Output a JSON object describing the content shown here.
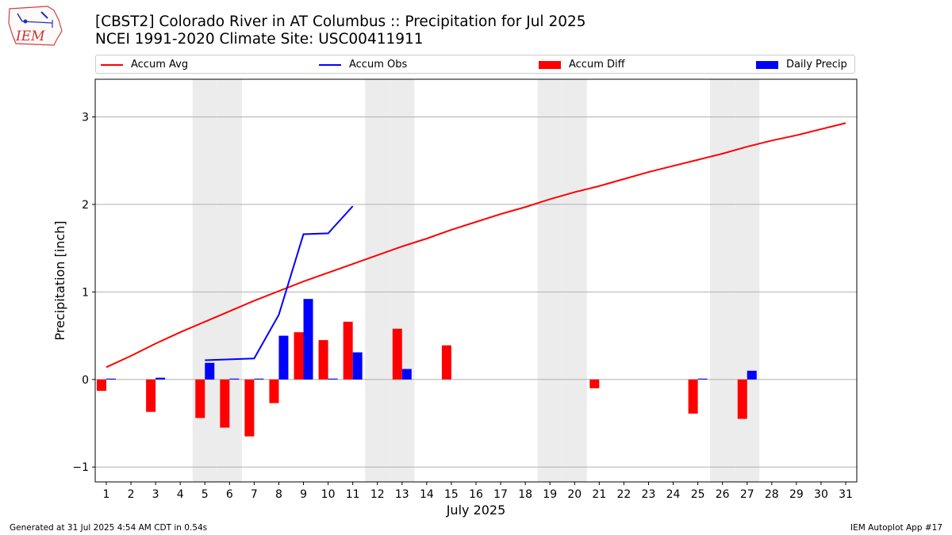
{
  "header": {
    "logo_text": "IEM",
    "title_line1": "[CBST2] Colorado River in AT Columbus :: Precipitation for Jul 2025",
    "title_line2": "NCEI 1991-2020 Climate Site: USC00411911"
  },
  "footer": {
    "generated": "Generated at 31 Jul 2025 4:54 AM CDT in 0.54s",
    "app": "IEM Autoplot App #17"
  },
  "colors": {
    "avg": "#ff0000",
    "obs": "#0000ff",
    "diff": "#ff0000",
    "daily": "#0000ff",
    "weekend": "#ececec",
    "grid": "#b0b0b0"
  },
  "chart_data": {
    "type": "bar",
    "title": "[CBST2] Colorado River in AT Columbus :: Precipitation for Jul 2025",
    "subtitle": "NCEI 1991-2020 Climate Site: USC00411911",
    "xlabel": "July 2025",
    "ylabel": "Precipitation [inch]",
    "ylim": [
      -1.17,
      3.43
    ],
    "yticks": [
      -1,
      0,
      1,
      2,
      3
    ],
    "grid": "horizontal",
    "legend_position": "top",
    "days": [
      1,
      2,
      3,
      4,
      5,
      6,
      7,
      8,
      9,
      10,
      11,
      12,
      13,
      14,
      15,
      16,
      17,
      18,
      19,
      20,
      21,
      22,
      23,
      24,
      25,
      26,
      27,
      28,
      29,
      30,
      31
    ],
    "weekend_days": [
      5,
      6,
      12,
      13,
      19,
      20,
      26,
      27
    ],
    "series": [
      {
        "name": "Accum Avg",
        "kind": "line",
        "values": [
          0.14,
          0.27,
          0.41,
          0.54,
          0.66,
          0.78,
          0.9,
          1.01,
          1.12,
          1.22,
          1.32,
          1.42,
          1.52,
          1.61,
          1.71,
          1.8,
          1.89,
          1.97,
          2.06,
          2.14,
          2.21,
          2.29,
          2.37,
          2.44,
          2.51,
          2.58,
          2.66,
          2.73,
          2.79,
          2.86,
          2.93
        ]
      },
      {
        "name": "Accum Obs",
        "kind": "line",
        "values": [
          null,
          null,
          null,
          null,
          0.22,
          0.23,
          0.24,
          0.74,
          1.66,
          1.67,
          1.98,
          null,
          null,
          null,
          null,
          null,
          null,
          null,
          null,
          null,
          null,
          null,
          null,
          null,
          null,
          null,
          null,
          null,
          null,
          null,
          null
        ]
      },
      {
        "name": "Accum Diff",
        "kind": "bar",
        "values": [
          -0.13,
          null,
          -0.37,
          null,
          -0.44,
          -0.55,
          -0.65,
          -0.27,
          0.54,
          0.45,
          0.66,
          null,
          0.58,
          null,
          0.39,
          null,
          null,
          null,
          null,
          null,
          -0.1,
          null,
          null,
          null,
          -0.39,
          null,
          -0.45,
          null,
          null,
          null,
          null
        ]
      },
      {
        "name": "Daily Precip",
        "kind": "bar",
        "values": [
          0.01,
          null,
          0.02,
          null,
          0.19,
          0.01,
          0.01,
          0.5,
          0.92,
          0.01,
          0.31,
          null,
          0.12,
          null,
          null,
          null,
          null,
          null,
          null,
          null,
          null,
          null,
          null,
          null,
          0.01,
          null,
          0.1,
          null,
          null,
          null,
          null
        ]
      }
    ]
  }
}
